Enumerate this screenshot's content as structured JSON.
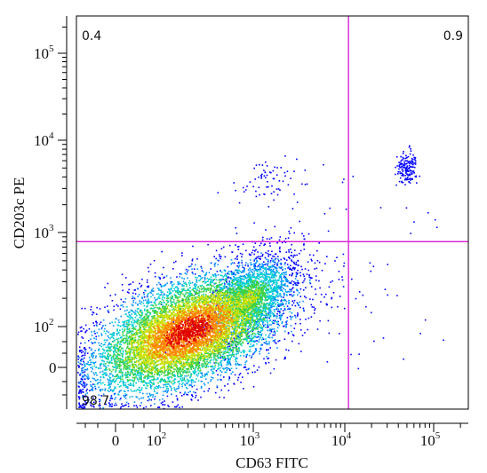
{
  "chart_data": {
    "type": "scatter",
    "title": "",
    "xlabel": "CD63 FITC",
    "ylabel": "CD203c PE",
    "x_scale": "biexponential",
    "y_scale": "biexponential",
    "x_ticks": [
      {
        "value": 0,
        "base": "0",
        "exp": ""
      },
      {
        "value": 100,
        "base": "10",
        "exp": "2"
      },
      {
        "value": 1000,
        "base": "10",
        "exp": "3"
      },
      {
        "value": 10000,
        "base": "10",
        "exp": "4"
      },
      {
        "value": 100000,
        "base": "10",
        "exp": "5"
      }
    ],
    "y_ticks": [
      {
        "value": 0,
        "base": "0",
        "exp": ""
      },
      {
        "value": 100,
        "base": "10",
        "exp": "2"
      },
      {
        "value": 1000,
        "base": "10",
        "exp": "3"
      },
      {
        "value": 10000,
        "base": "10",
        "exp": "4"
      },
      {
        "value": 100000,
        "base": "10",
        "exp": "5"
      }
    ],
    "quadrant_gate": {
      "x": 11000,
      "y": 800,
      "color": "#d000d0"
    },
    "quadrant_labels": {
      "upper_left": "0.4",
      "upper_right": "0.9",
      "lower_left": "98.7",
      "lower_right": ""
    },
    "populations": [
      {
        "center_x": 200,
        "center_y": 60,
        "percent": 98.7
      },
      {
        "center_x": 1500,
        "center_y": 3500,
        "percent": 0.4
      },
      {
        "center_x": 50000,
        "center_y": 5000,
        "percent": 0.9
      }
    ],
    "density_colors": [
      "#0000ff",
      "#0090ff",
      "#00d0d0",
      "#40d040",
      "#d0e000",
      "#ff8000",
      "#e00000"
    ],
    "grid": false,
    "legend": "none"
  }
}
